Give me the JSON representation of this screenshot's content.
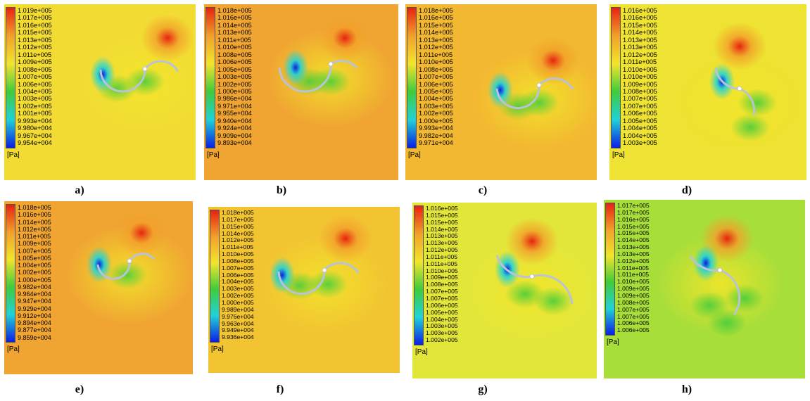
{
  "unit_label": "[Pa]",
  "colors": {
    "low": "#0a1fe6",
    "cyan": "#1fd3d8",
    "green": "#3fcc3a",
    "yellow": "#f2e52a",
    "orange": "#f2a02a",
    "high": "#e8220f",
    "blade": "#b9c2d6"
  },
  "panels": [
    {
      "label": "a)",
      "background": "#f2dc34",
      "ticks": [
        "1.019e+005",
        "1.017e+005",
        "1.016e+005",
        "1.015e+005",
        "1.013e+005",
        "1.012e+005",
        "1.011e+005",
        "1.009e+005",
        "1.008e+005",
        "1.007e+005",
        "1.006e+005",
        "1.004e+005",
        "1.003e+005",
        "1.002e+005",
        "1.001e+005",
        "9.993e+004",
        "9.980e+004",
        "9.967e+004",
        "9.954e+004"
      ]
    },
    {
      "label": "b)",
      "background": "#f0a532",
      "ticks": [
        "1.018e+005",
        "1.016e+005",
        "1.014e+005",
        "1.013e+005",
        "1.011e+005",
        "1.010e+005",
        "1.008e+005",
        "1.006e+005",
        "1.005e+005",
        "1.003e+005",
        "1.002e+005",
        "1.000e+005",
        "9.986e+004",
        "9.971e+004",
        "9.955e+004",
        "9.940e+004",
        "9.924e+004",
        "9.909e+004",
        "9.893e+004"
      ]
    },
    {
      "label": "c)",
      "background": "#f2b831",
      "ticks": [
        "1.018e+005",
        "1.016e+005",
        "1.015e+005",
        "1.014e+005",
        "1.013e+005",
        "1.012e+005",
        "1.011e+005",
        "1.010e+005",
        "1.008e+005",
        "1.007e+005",
        "1.006e+005",
        "1.005e+005",
        "1.004e+005",
        "1.003e+005",
        "1.002e+005",
        "1.000e+005",
        "9.993e+004",
        "9.982e+004",
        "9.971e+004"
      ]
    },
    {
      "label": "d)",
      "background": "#eee232",
      "ticks": [
        "1.016e+005",
        "1.016e+005",
        "1.015e+005",
        "1.014e+005",
        "1.013e+005",
        "1.013e+005",
        "1.012e+005",
        "1.011e+005",
        "1.010e+005",
        "1.010e+005",
        "1.009e+005",
        "1.008e+005",
        "1.007e+005",
        "1.007e+005",
        "1.006e+005",
        "1.005e+005",
        "1.004e+005",
        "1.004e+005",
        "1.003e+005"
      ]
    },
    {
      "label": "e)",
      "background": "#f0a532",
      "ticks": [
        "1.018e+005",
        "1.016e+005",
        "1.014e+005",
        "1.012e+005",
        "1.011e+005",
        "1.009e+005",
        "1.007e+005",
        "1.005e+005",
        "1.004e+005",
        "1.002e+005",
        "1.000e+005",
        "9.982e+004",
        "9.964e+004",
        "9.947e+004",
        "9.929e+004",
        "9.912e+004",
        "9.894e+004",
        "9.877e+004",
        "9.859e+004"
      ]
    },
    {
      "label": "f)",
      "background": "#f2c432",
      "ticks": [
        "1.018e+005",
        "1.017e+005",
        "1.015e+005",
        "1.014e+005",
        "1.012e+005",
        "1.011e+005",
        "1.010e+005",
        "1.008e+005",
        "1.007e+005",
        "1.006e+005",
        "1.004e+005",
        "1.003e+005",
        "1.002e+005",
        "1.000e+005",
        "9.989e+004",
        "9.976e+004",
        "9.963e+004",
        "9.949e+004",
        "9.936e+004"
      ]
    },
    {
      "label": "g)",
      "background": "#e3e63a",
      "ticks": [
        "1.016e+005",
        "1.015e+005",
        "1.015e+005",
        "1.014e+005",
        "1.013e+005",
        "1.013e+005",
        "1.012e+005",
        "1.011e+005",
        "1.011e+005",
        "1.010e+005",
        "1.009e+005",
        "1.008e+005",
        "1.007e+005",
        "1.007e+005",
        "1.006e+005",
        "1.005e+005",
        "1.004e+005",
        "1.003e+005",
        "1.003e+005",
        "1.002e+005"
      ]
    },
    {
      "label": "h)",
      "background": "#a8de3a",
      "ticks": [
        "1.017e+005",
        "1.017e+005",
        "1.016e+005",
        "1.015e+005",
        "1.015e+005",
        "1.014e+005",
        "1.013e+005",
        "1.013e+005",
        "1.012e+005",
        "1.011e+005",
        "1.011e+005",
        "1.010e+005",
        "1.009e+005",
        "1.009e+005",
        "1.008e+005",
        "1.007e+005",
        "1.007e+005",
        "1.006e+005",
        "1.006e+005"
      ]
    }
  ]
}
